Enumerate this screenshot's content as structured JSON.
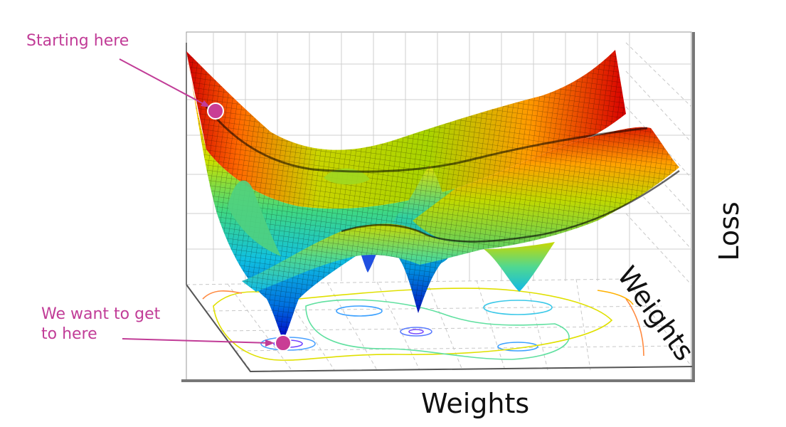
{
  "annotations": {
    "start": "Starting here",
    "goal_line1": "We want to get",
    "goal_line2": "to here"
  },
  "axes": {
    "x": "Weights",
    "y": "Weights",
    "z": "Loss"
  },
  "colors": {
    "annotation": "#c13c97",
    "marker": "#c93d95",
    "surface_high": "#d40000",
    "surface_mid": "#e0e000",
    "surface_low": "#00c0e0",
    "surface_min": "#0000c0"
  }
}
